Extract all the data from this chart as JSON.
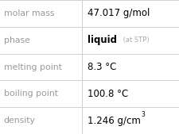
{
  "rows": [
    {
      "label": "molar mass",
      "value": "47.017 g/mol",
      "value_bold": false,
      "suffix": null,
      "superscript": null
    },
    {
      "label": "phase",
      "value": "liquid",
      "value_bold": true,
      "suffix": " (at STP)",
      "superscript": null
    },
    {
      "label": "melting point",
      "value": "8.3 °C",
      "value_bold": false,
      "suffix": null,
      "superscript": null
    },
    {
      "label": "boiling point",
      "value": "100.8 °C",
      "value_bold": false,
      "suffix": null,
      "superscript": null
    },
    {
      "label": "density",
      "value": "1.246 g/cm",
      "value_bold": false,
      "suffix": null,
      "superscript": "3"
    }
  ],
  "label_color": "#999999",
  "value_color": "#000000",
  "suffix_color": "#aaaaaa",
  "line_color": "#d0d0d0",
  "background_color": "#ffffff",
  "col_split": 0.455,
  "label_fontsize": 7.8,
  "value_fontsize": 8.5,
  "suffix_fontsize": 6.0,
  "superscript_fontsize": 5.5
}
